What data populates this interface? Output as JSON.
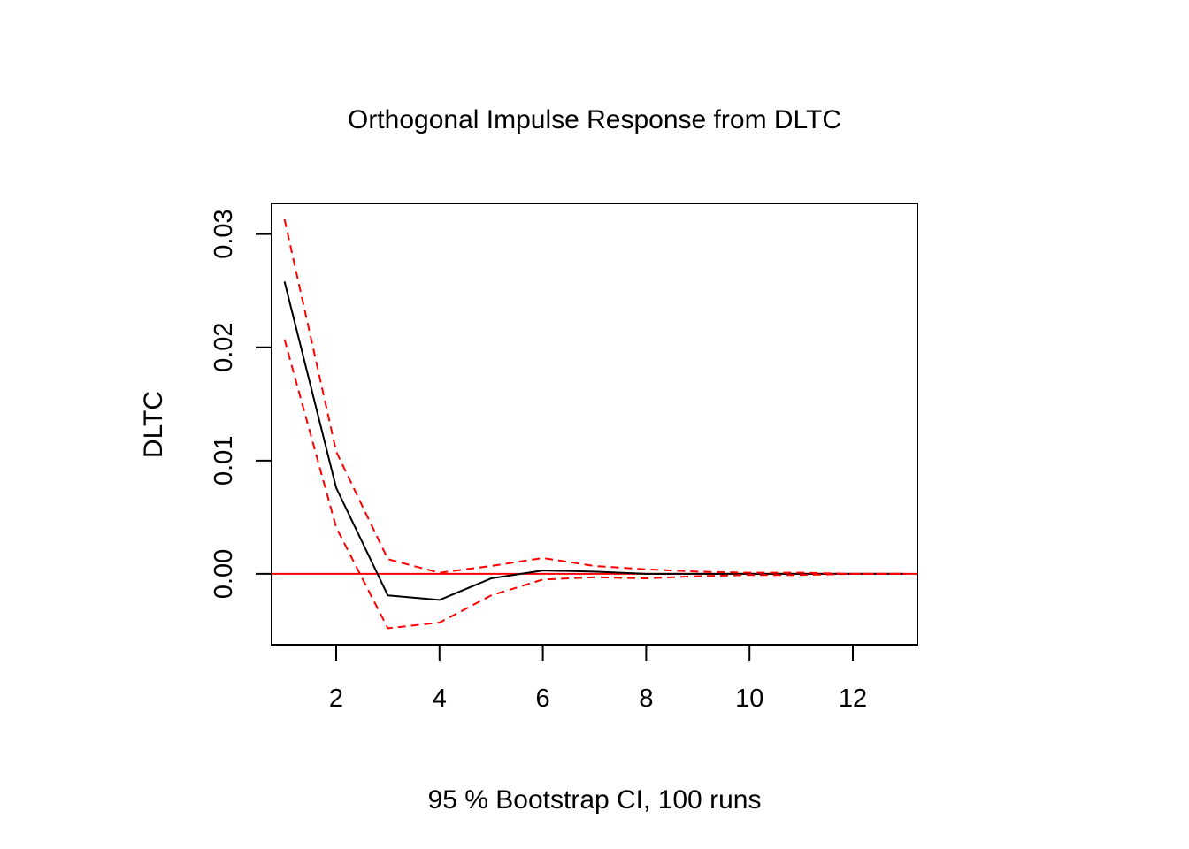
{
  "chart_data": {
    "type": "line",
    "title": "Orthogonal Impulse Response from DLTC",
    "xlabel": "95 % Bootstrap CI,  100 runs",
    "ylabel": "DLTC",
    "xlim": [
      0.75,
      13.25
    ],
    "ylim": [
      -0.00625,
      0.0327
    ],
    "x_ticks": [
      2,
      4,
      6,
      8,
      10,
      12
    ],
    "x_tick_labels": [
      "2",
      "4",
      "6",
      "8",
      "10",
      "12"
    ],
    "y_ticks": [
      0.0,
      0.01,
      0.02,
      0.03
    ],
    "y_tick_labels": [
      "0.00",
      "0.01",
      "0.02",
      "0.03"
    ],
    "zero_line": 0.0,
    "grid": false,
    "x": [
      1,
      2,
      3,
      4,
      5,
      6,
      7,
      8,
      9,
      10,
      11,
      12,
      13
    ],
    "series": [
      {
        "role": "response",
        "color": "#000000",
        "dashed": false,
        "values": [
          0.0258,
          0.0076,
          -0.0019,
          -0.0023,
          -0.0004,
          0.0003,
          0.0002,
          0.0,
          0.0,
          0.0,
          0.0,
          0.0,
          0.0
        ]
      },
      {
        "role": "upper",
        "color": "#ff0000",
        "dashed": true,
        "values": [
          0.0313,
          0.0108,
          0.0013,
          0.0001,
          0.0007,
          0.0014,
          0.0007,
          0.0004,
          0.0002,
          0.0001,
          0.0001,
          0.0,
          0.0
        ]
      },
      {
        "role": "lower",
        "color": "#ff0000",
        "dashed": true,
        "values": [
          0.0207,
          0.0041,
          -0.0048,
          -0.0043,
          -0.0019,
          -0.0005,
          -0.0003,
          -0.0004,
          -0.0002,
          -0.0001,
          -0.0001,
          0.0,
          0.0
        ]
      }
    ]
  }
}
